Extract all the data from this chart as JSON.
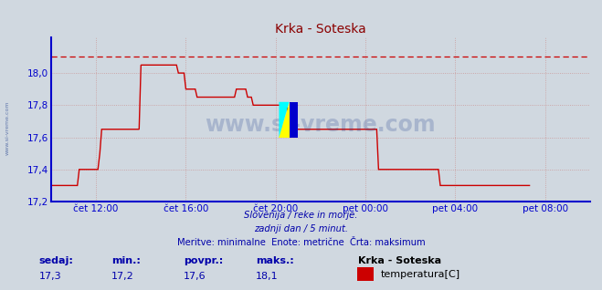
{
  "title": "Krka - Soteska",
  "title_color": "#8b0000",
  "bg_color": "#d0d8e0",
  "plot_bg_color": "#d0d8e0",
  "line_color": "#cc0000",
  "axis_color": "#0000cc",
  "grid_color": "#cc9999",
  "dashed_line_color": "#cc0000",
  "dashed_line_value": 18.1,
  "ylim": [
    17.2,
    18.22
  ],
  "yticks": [
    17.2,
    17.4,
    17.6,
    17.8,
    18.0
  ],
  "ytick_labels": [
    "17,2",
    "17,4",
    "17,6",
    "17,8",
    "18,0"
  ],
  "xtick_labels": [
    "čet 12:00",
    "čet 16:00",
    "čet 20:00",
    "pet 00:00",
    "pet 04:00",
    "pet 08:00"
  ],
  "xtick_positions": [
    12.0,
    16.0,
    20.0,
    24.0,
    28.0,
    32.0
  ],
  "subtitle_lines": [
    "Slovenija / reke in morje.",
    "zadnji dan / 5 minut.",
    "Meritve: minimalne  Enote: metrične  Črta: maksimum"
  ],
  "subtitle_color": "#0000aa",
  "watermark": "www.si-vreme.com",
  "watermark_color": "#1a3a8a",
  "footer_labels": [
    "sedaj:",
    "min.:",
    "povpr.:",
    "maks.:"
  ],
  "footer_values": [
    "17,3",
    "17,2",
    "17,6",
    "18,1"
  ],
  "footer_color": "#0000aa",
  "legend_title": "Krka - Soteska",
  "legend_item": "temperatura[C]",
  "legend_color": "#cc0000",
  "xmin": 10.0,
  "xmax": 34.0,
  "data_x_hours": [
    10.0,
    10.083,
    10.167,
    10.25,
    10.333,
    10.417,
    10.5,
    10.583,
    10.667,
    10.75,
    10.833,
    10.917,
    11.0,
    11.083,
    11.167,
    11.25,
    11.333,
    11.417,
    11.5,
    11.583,
    11.667,
    11.75,
    11.833,
    11.917,
    12.0,
    12.083,
    12.167,
    12.25,
    12.333,
    12.417,
    12.5,
    12.583,
    12.667,
    12.75,
    12.833,
    12.917,
    13.0,
    13.083,
    13.167,
    13.25,
    13.333,
    13.417,
    13.5,
    13.583,
    13.667,
    13.75,
    13.833,
    13.917,
    14.0,
    14.083,
    14.167,
    14.25,
    14.333,
    14.417,
    14.5,
    14.583,
    14.667,
    14.75,
    14.833,
    14.917,
    15.0,
    15.083,
    15.167,
    15.25,
    15.333,
    15.417,
    15.5,
    15.583,
    15.667,
    15.75,
    15.833,
    15.917,
    16.0,
    16.083,
    16.167,
    16.25,
    16.333,
    16.417,
    16.5,
    16.583,
    16.667,
    16.75,
    16.833,
    16.917,
    17.0,
    17.083,
    17.167,
    17.25,
    17.333,
    17.417,
    17.5,
    17.583,
    17.667,
    17.75,
    17.833,
    17.917,
    18.0,
    18.083,
    18.167,
    18.25,
    18.333,
    18.417,
    18.5,
    18.583,
    18.667,
    18.75,
    18.833,
    18.917,
    19.0,
    19.083,
    19.167,
    19.25,
    19.333,
    19.417,
    19.5,
    19.583,
    19.667,
    19.75,
    19.833,
    19.917,
    20.0,
    20.083,
    20.167,
    20.25,
    20.333,
    20.417,
    20.5,
    20.583,
    20.667,
    20.75,
    20.833,
    20.917,
    21.0,
    21.083,
    21.167,
    21.25,
    21.333,
    21.417,
    21.5,
    21.583,
    21.667,
    21.75,
    21.833,
    21.917,
    22.0,
    22.083,
    22.167,
    22.25,
    22.333,
    22.417,
    22.5,
    22.583,
    22.667,
    22.75,
    22.833,
    22.917,
    23.0,
    23.083,
    23.167,
    23.25,
    23.333,
    23.417,
    23.5,
    23.583,
    23.667,
    23.75,
    23.833,
    23.917,
    24.0,
    24.083,
    24.167,
    24.25,
    24.333,
    24.417,
    24.5,
    24.583,
    24.667,
    24.75,
    24.833,
    24.917,
    25.0,
    25.083,
    25.167,
    25.25,
    25.333,
    25.417,
    25.5,
    25.583,
    25.667,
    25.75,
    25.833,
    25.917,
    26.0,
    26.083,
    26.167,
    26.25,
    26.333,
    26.417,
    26.5,
    26.583,
    26.667,
    26.75,
    26.833,
    26.917,
    27.0,
    27.083,
    27.167,
    27.25,
    27.333,
    27.417,
    27.5,
    27.583,
    27.667,
    27.75,
    27.833,
    27.917,
    28.0,
    28.083,
    28.167,
    28.25,
    28.333,
    28.417,
    28.5,
    28.583,
    28.667,
    28.75,
    28.833,
    28.917,
    29.0,
    29.083,
    29.167,
    29.25,
    29.333,
    29.417,
    29.5,
    29.583,
    29.667,
    29.75,
    29.833,
    29.917,
    30.0,
    30.083,
    30.167,
    30.25,
    30.333,
    30.417,
    30.5,
    30.583,
    30.667,
    30.75,
    30.833,
    30.917,
    31.0,
    31.083,
    31.167,
    31.25,
    31.333
  ],
  "data_y": [
    17.3,
    17.3,
    17.3,
    17.3,
    17.3,
    17.3,
    17.3,
    17.3,
    17.3,
    17.3,
    17.3,
    17.3,
    17.3,
    17.3,
    17.3,
    17.4,
    17.4,
    17.4,
    17.4,
    17.4,
    17.4,
    17.4,
    17.4,
    17.4,
    17.4,
    17.4,
    17.5,
    17.65,
    17.65,
    17.65,
    17.65,
    17.65,
    17.65,
    17.65,
    17.65,
    17.65,
    17.65,
    17.65,
    17.65,
    17.65,
    17.65,
    17.65,
    17.65,
    17.65,
    17.65,
    17.65,
    17.65,
    17.65,
    18.05,
    18.05,
    18.05,
    18.05,
    18.05,
    18.05,
    18.05,
    18.05,
    18.05,
    18.05,
    18.05,
    18.05,
    18.05,
    18.05,
    18.05,
    18.05,
    18.05,
    18.05,
    18.05,
    18.05,
    18.0,
    18.0,
    18.0,
    18.0,
    17.9,
    17.9,
    17.9,
    17.9,
    17.9,
    17.9,
    17.85,
    17.85,
    17.85,
    17.85,
    17.85,
    17.85,
    17.85,
    17.85,
    17.85,
    17.85,
    17.85,
    17.85,
    17.85,
    17.85,
    17.85,
    17.85,
    17.85,
    17.85,
    17.85,
    17.85,
    17.85,
    17.9,
    17.9,
    17.9,
    17.9,
    17.9,
    17.9,
    17.85,
    17.85,
    17.85,
    17.8,
    17.8,
    17.8,
    17.8,
    17.8,
    17.8,
    17.8,
    17.8,
    17.8,
    17.8,
    17.8,
    17.8,
    17.8,
    17.8,
    17.8,
    17.8,
    17.8,
    17.8,
    17.8,
    17.65,
    17.65,
    17.65,
    17.65,
    17.65,
    17.65,
    17.65,
    17.65,
    17.65,
    17.65,
    17.65,
    17.65,
    17.65,
    17.65,
    17.65,
    17.65,
    17.65,
    17.65,
    17.65,
    17.65,
    17.65,
    17.65,
    17.65,
    17.65,
    17.65,
    17.65,
    17.65,
    17.65,
    17.65,
    17.65,
    17.65,
    17.65,
    17.65,
    17.65,
    17.65,
    17.65,
    17.65,
    17.65,
    17.65,
    17.65,
    17.65,
    17.65,
    17.65,
    17.65,
    17.65,
    17.65,
    17.65,
    17.65,
    17.4,
    17.4,
    17.4,
    17.4,
    17.4,
    17.4,
    17.4,
    17.4,
    17.4,
    17.4,
    17.4,
    17.4,
    17.4,
    17.4,
    17.4,
    17.4,
    17.4,
    17.4,
    17.4,
    17.4,
    17.4,
    17.4,
    17.4,
    17.4,
    17.4,
    17.4,
    17.4,
    17.4,
    17.4,
    17.4,
    17.4,
    17.4,
    17.4,
    17.3,
    17.3,
    17.3,
    17.3,
    17.3,
    17.3,
    17.3,
    17.3,
    17.3,
    17.3,
    17.3,
    17.3,
    17.3,
    17.3,
    17.3,
    17.3,
    17.3,
    17.3,
    17.3,
    17.3,
    17.3,
    17.3,
    17.3,
    17.3,
    17.3,
    17.3,
    17.3,
    17.3,
    17.3,
    17.3,
    17.3,
    17.3,
    17.3,
    17.3,
    17.3,
    17.3,
    17.3,
    17.3,
    17.3,
    17.3,
    17.3,
    17.3,
    17.3,
    17.3,
    17.3,
    17.3,
    17.3,
    17.3,
    17.3
  ]
}
